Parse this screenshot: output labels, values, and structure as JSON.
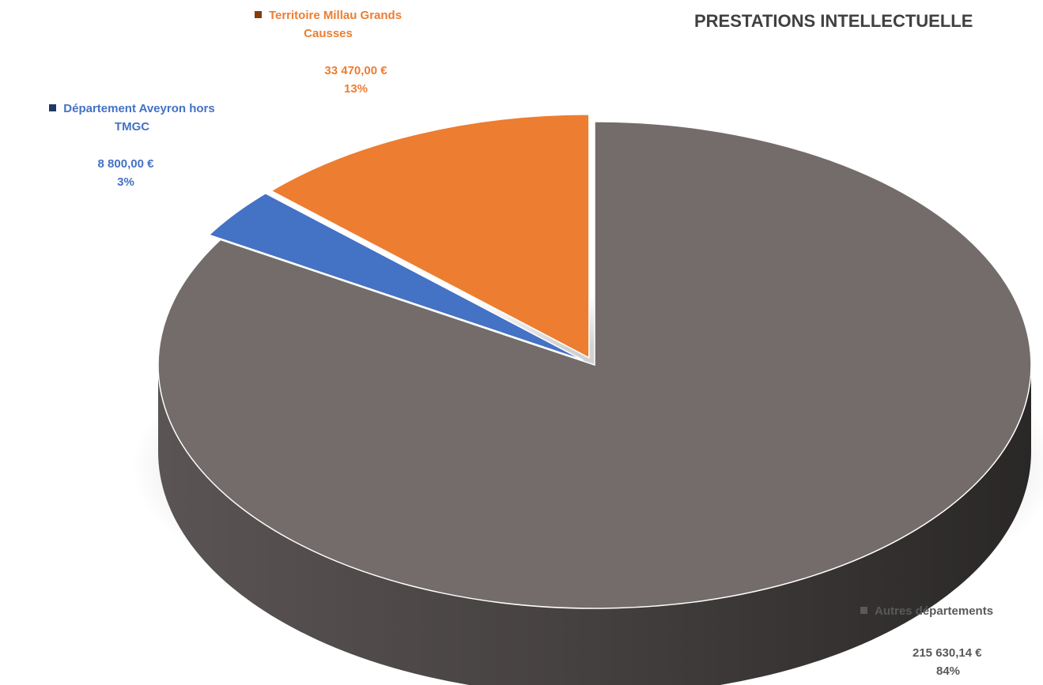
{
  "chart_data": {
    "type": "pie",
    "title": "PRESTATIONS INTELLECTUELLE",
    "slices": [
      {
        "name": "Autres départements",
        "value": 215630.14,
        "value_label": "215 630,14 €",
        "percent": "84%",
        "color": "#736c6b",
        "side_color": "#4a4545"
      },
      {
        "name": "Département Aveyron hors TMGC",
        "value": 8800.0,
        "value_label": "8 800,00 €",
        "percent": "3%",
        "color": "#4472c4",
        "side_color": "#203864"
      },
      {
        "name": "Territoire Millau Grands Causses",
        "value": 33470.0,
        "value_label": "33 470,00 €",
        "percent": "13%",
        "color": "#ed7d31",
        "side_color": "#843c0c"
      }
    ],
    "labels": {
      "aveyron_name_1": "Département Aveyron hors",
      "aveyron_name_2": "TMGC",
      "millau_name_1": "Territoire Millau Grands",
      "millau_name_2": "Causses"
    },
    "legend": "none"
  }
}
